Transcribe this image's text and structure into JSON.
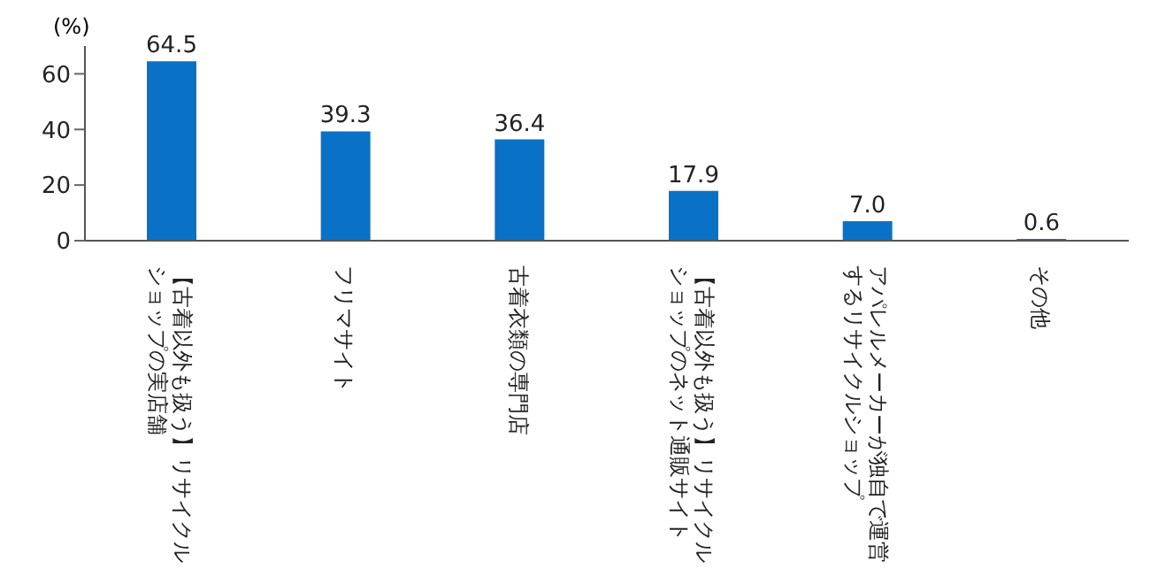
{
  "chart_data": {
    "type": "bar",
    "ylabel": "(%)",
    "categories": [
      "【古着以外も扱う】リサイクルショップの実店舗",
      "フリマサイト",
      "古着衣類の専門店",
      "【古着以外も扱う】リサイクルショップのネット通販サイト",
      "アパレルメーカーが独自で運営するリサイクルショップ",
      "その他"
    ],
    "values": [
      64.5,
      39.3,
      36.4,
      17.9,
      7.0,
      0.6
    ],
    "value_labels": [
      "64.5",
      "39.3",
      "36.4",
      "17.9",
      "7.0",
      "0.6"
    ],
    "color": "#0a72c6",
    "ylim": [
      0,
      70
    ],
    "yticks": [
      0,
      20,
      40,
      60
    ],
    "grid": false
  }
}
